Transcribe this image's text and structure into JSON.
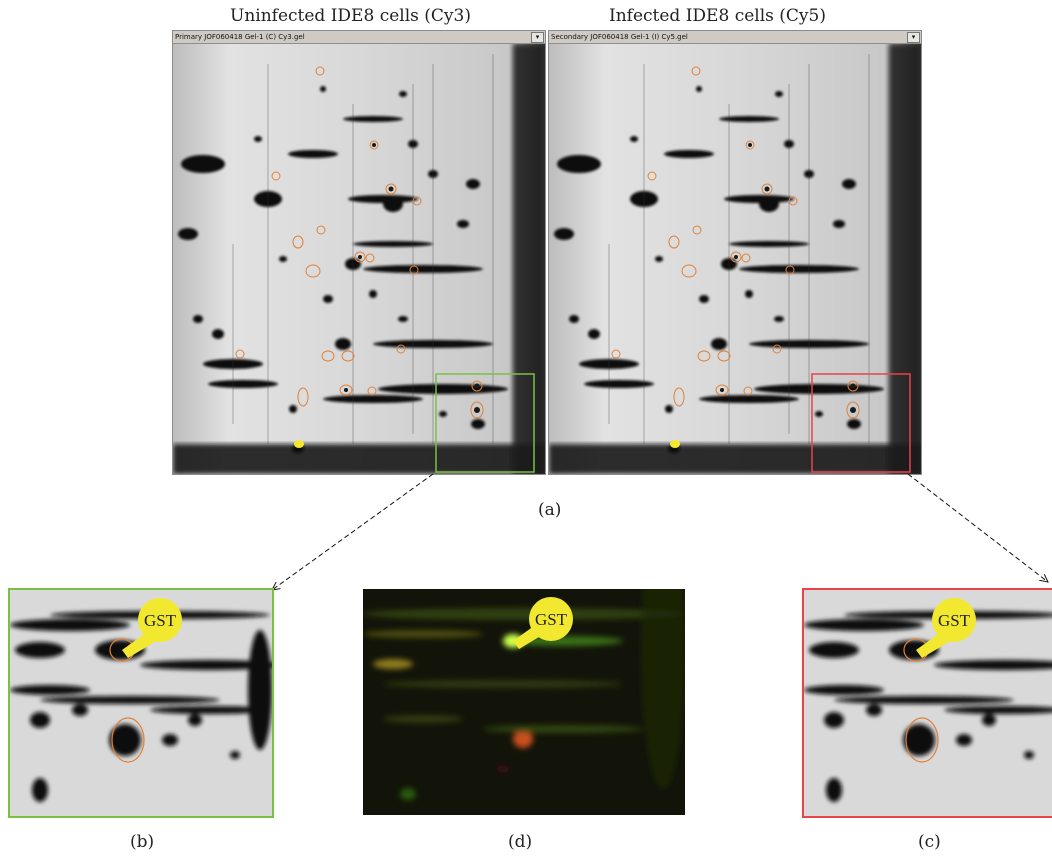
{
  "titles": {
    "left": "Uninfected IDE8 cells (Cy3)",
    "right": "Infected IDE8 cells (Cy5)"
  },
  "windows": {
    "primary": "Primary JOF060418 Gel-1 (C) Cy3.gel",
    "secondary": "Secondary JOF060418 Gel-1 (I) Cy5.gel",
    "dropdown_glyph": "▾"
  },
  "callout": "GST",
  "panel_labels": {
    "a": "(a)",
    "b": "(b)",
    "c": "(c)",
    "d": "(d)"
  },
  "colors": {
    "uninfected_box": "#7ac143",
    "infected_box": "#e8424b",
    "spot_outline": "#e0823a",
    "callout": "#f2e830"
  }
}
